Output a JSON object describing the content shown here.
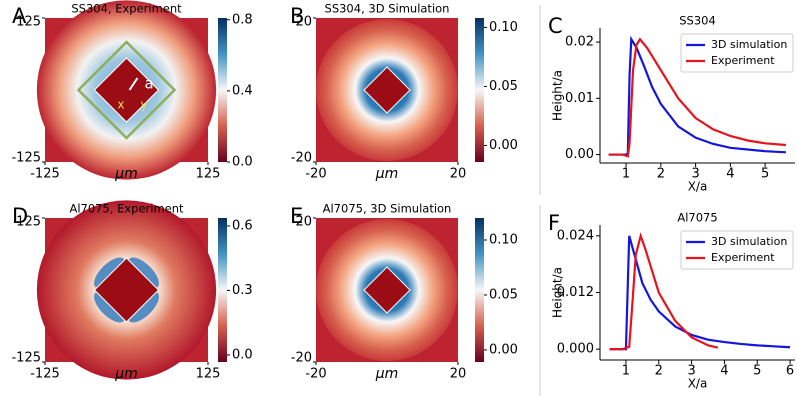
{
  "chart_data": [
    {
      "type": "heatmap",
      "panel": "A",
      "title": "SS304, Experiment",
      "xlabel": "μm",
      "xlim": [
        -125,
        125
      ],
      "xticks": [
        -125,
        125
      ],
      "ylim": [
        -125,
        125
      ],
      "yticks": [
        125,
        -125
      ],
      "clim": [
        0,
        0.81
      ],
      "cticks": [
        {
          "value": 0,
          "label": "0.0"
        },
        0.4,
        0.8
      ],
      "annotations": [
        "a",
        "x",
        "y"
      ]
    },
    {
      "type": "heatmap",
      "panel": "B",
      "title": "SS304, 3D Simulation",
      "xlabel": "μm",
      "xlim": [
        -20,
        20
      ],
      "xticks": [
        -20,
        20
      ],
      "ylim": [
        -20,
        20
      ],
      "yticks": [
        20,
        -20
      ],
      "clim": [
        -0.014,
        0.108
      ],
      "cticks": [
        {
          "value": 0.1,
          "label": "0.10"
        },
        0.05,
        {
          "value": 0,
          "label": "0.00"
        }
      ]
    },
    {
      "type": "line",
      "panel": "C",
      "title": "SS304",
      "xlabel": "X/a",
      "ylabel": "Height/a",
      "xlim": [
        0.25,
        5.86
      ],
      "xticks": [
        1,
        2,
        3,
        4,
        5
      ],
      "ylim": [
        -0.0015,
        0.0225
      ],
      "yticks": [
        {
          "value": 0,
          "label": "0.00"
        },
        0.01,
        0.02
      ],
      "legend": "upper right",
      "series": [
        {
          "name": "3D simulation",
          "color": "#1515e0",
          "x": [
            0.5,
            0.9,
            1.0,
            1.05,
            1.1,
            1.15,
            1.3,
            1.5,
            1.75,
            2.0,
            2.5,
            3.0,
            3.5,
            4.0,
            4.5,
            5.0,
            5.6
          ],
          "values": [
            0,
            0,
            0,
            0.0002,
            0.014,
            0.0205,
            0.019,
            0.016,
            0.012,
            0.009,
            0.005,
            0.003,
            0.0019,
            0.0012,
            0.0009,
            0.0006,
            0.0004
          ]
        },
        {
          "name": "Experiment",
          "color": "#e8141c",
          "x": [
            0.5,
            0.9,
            1.05,
            1.1,
            1.2,
            1.3,
            1.4,
            1.6,
            2.0,
            2.5,
            3.0,
            3.5,
            4.0,
            4.5,
            5.0,
            5.6
          ],
          "values": [
            0,
            0,
            -0.0003,
            0.002,
            0.015,
            0.0195,
            0.0205,
            0.019,
            0.015,
            0.01,
            0.0065,
            0.0045,
            0.0033,
            0.0025,
            0.002,
            0.0017
          ]
        }
      ]
    },
    {
      "type": "heatmap",
      "panel": "D",
      "title": "Al7075, Experiment",
      "xlabel": "μm",
      "xlim": [
        -125,
        125
      ],
      "xticks": [
        -125,
        125
      ],
      "ylim": [
        -125,
        125
      ],
      "yticks": [
        125,
        -125
      ],
      "clim": [
        -0.033,
        0.637
      ],
      "cticks": [
        0.6,
        0.3,
        {
          "value": 0,
          "label": "0.0"
        }
      ]
    },
    {
      "type": "heatmap",
      "panel": "E",
      "title": "Al7075, 3D Simulation",
      "xlabel": "μm",
      "xlim": [
        -20,
        20
      ],
      "xticks": [
        -20,
        20
      ],
      "ylim": [
        -20,
        20
      ],
      "yticks": [
        20,
        -20
      ],
      "clim": [
        -0.011,
        0.12
      ],
      "cticks": [
        {
          "value": 0.1,
          "label": "0.10"
        },
        0.05,
        {
          "value": 0,
          "label": "0.00"
        }
      ]
    },
    {
      "type": "line",
      "panel": "F",
      "title": "Al7075",
      "xlabel": "X/a",
      "ylabel": "Height/a",
      "xlim": [
        0.21,
        6.15
      ],
      "xticks": [
        1,
        2,
        3,
        4,
        5,
        6
      ],
      "ylim": [
        -0.0023,
        0.0263
      ],
      "yticks": [
        {
          "value": 0,
          "label": "0.000"
        },
        0.012,
        0.024
      ],
      "legend": "upper right",
      "series": [
        {
          "name": "3D simulation",
          "color": "#1515e0",
          "x": [
            0.5,
            0.9,
            1.0,
            1.05,
            1.1,
            1.3,
            1.5,
            1.75,
            2.0,
            2.5,
            3.0,
            3.5,
            4.0,
            4.5,
            5.0,
            5.5,
            6.0
          ],
          "values": [
            0,
            0,
            0,
            0.012,
            0.024,
            0.019,
            0.014,
            0.0105,
            0.008,
            0.0048,
            0.003,
            0.002,
            0.0015,
            0.0011,
            0.0008,
            0.0006,
            0.0004
          ]
        },
        {
          "name": "Experiment",
          "color": "#e8141c",
          "x": [
            0.5,
            0.9,
            1.1,
            1.2,
            1.3,
            1.45,
            1.6,
            2.0,
            2.5,
            3.0,
            3.5,
            3.8
          ],
          "values": [
            0,
            0,
            0.0005,
            0.01,
            0.02,
            0.024,
            0.021,
            0.012,
            0.006,
            0.0025,
            0.0008,
            0.0003
          ]
        }
      ]
    }
  ]
}
